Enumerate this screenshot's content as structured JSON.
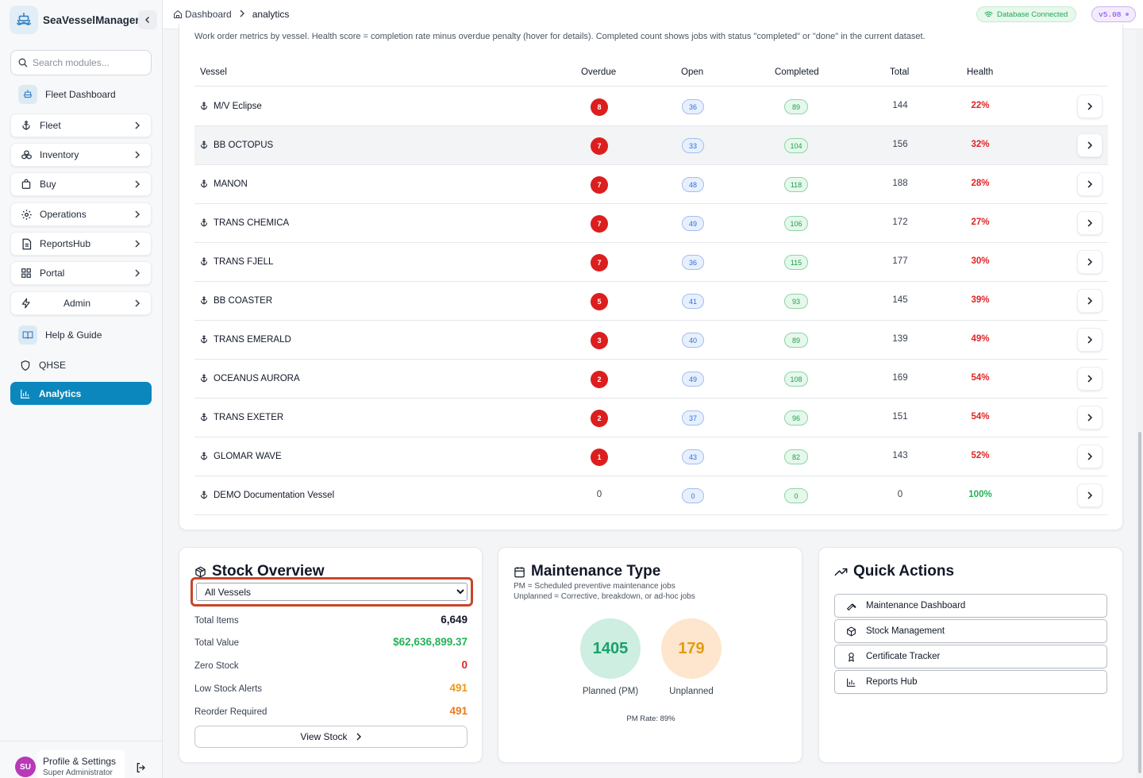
{
  "app": {
    "name": "SeaVesselManager"
  },
  "sidebar": {
    "search_placeholder": "Search modules...",
    "items": [
      {
        "label": "Fleet Dashboard",
        "icon": "ship-icon"
      },
      {
        "label": "Fleet",
        "icon": "anchor-icon"
      },
      {
        "label": "Inventory",
        "icon": "boxes-icon"
      },
      {
        "label": "Buy",
        "icon": "cart-icon"
      },
      {
        "label": "Operations",
        "icon": "gear-icon"
      },
      {
        "label": "ReportsHub",
        "icon": "report-icon"
      },
      {
        "label": "Portal",
        "icon": "grid-icon"
      },
      {
        "label": "Admin",
        "icon": "bolt-icon"
      },
      {
        "label": "Help & Guide",
        "icon": "book-icon"
      },
      {
        "label": "QHSE",
        "icon": "shield-icon"
      },
      {
        "label": "Analytics",
        "icon": "bar-chart-icon"
      }
    ],
    "profile": {
      "initials": "SU",
      "name": "Profile & Settings",
      "role": "Super Administrator"
    }
  },
  "topbar": {
    "breadcrumb_home": "Dashboard",
    "breadcrumb_current": "analytics",
    "db_status": "Database Connected",
    "version": "v5.08"
  },
  "work_orders": {
    "description": "Work order metrics by vessel. Health score = completion rate minus overdue penalty (hover for details). Completed count shows jobs with status \"completed\" or \"done\" in the current dataset.",
    "columns": {
      "vessel": "Vessel",
      "overdue": "Overdue",
      "open": "Open",
      "completed": "Completed",
      "total": "Total",
      "health": "Health"
    },
    "rows": [
      {
        "vessel": "M/V Eclipse",
        "overdue": "8",
        "open": "36",
        "completed": "89",
        "total": "144",
        "health": "22%"
      },
      {
        "vessel": "BB OCTOPUS",
        "overdue": "7",
        "open": "33",
        "completed": "104",
        "total": "156",
        "health": "32%"
      },
      {
        "vessel": "MANON",
        "overdue": "7",
        "open": "48",
        "completed": "118",
        "total": "188",
        "health": "28%"
      },
      {
        "vessel": "TRANS CHEMICA",
        "overdue": "7",
        "open": "49",
        "completed": "106",
        "total": "172",
        "health": "27%"
      },
      {
        "vessel": "TRANS FJELL",
        "overdue": "7",
        "open": "36",
        "completed": "115",
        "total": "177",
        "health": "30%"
      },
      {
        "vessel": "BB COASTER",
        "overdue": "5",
        "open": "41",
        "completed": "93",
        "total": "145",
        "health": "39%"
      },
      {
        "vessel": "TRANS EMERALD",
        "overdue": "3",
        "open": "40",
        "completed": "89",
        "total": "139",
        "health": "49%"
      },
      {
        "vessel": "OCEANUS AURORA",
        "overdue": "2",
        "open": "49",
        "completed": "108",
        "total": "169",
        "health": "54%"
      },
      {
        "vessel": "TRANS EXETER",
        "overdue": "2",
        "open": "37",
        "completed": "96",
        "total": "151",
        "health": "54%"
      },
      {
        "vessel": "GLOMAR WAVE",
        "overdue": "1",
        "open": "43",
        "completed": "82",
        "total": "143",
        "health": "52%"
      },
      {
        "vessel": "DEMO Documentation Vessel",
        "overdue": "0",
        "open": "0",
        "completed": "0",
        "total": "0",
        "health": "100%"
      }
    ]
  },
  "stock": {
    "title": "Stock Overview",
    "selected_vessel": "All Vessels",
    "stats": [
      {
        "label": "Total Items",
        "value": "6,649",
        "color": "#111827"
      },
      {
        "label": "Total Value",
        "value": "$62,636,899.37",
        "color": "#22b357"
      },
      {
        "label": "Zero Stock",
        "value": "0",
        "color": "#dc2626"
      },
      {
        "label": "Low Stock Alerts",
        "value": "491",
        "color": "#ea9a16"
      },
      {
        "label": "Reorder Required",
        "value": "491",
        "color": "#ea7a16"
      }
    ],
    "view_label": "View Stock"
  },
  "maintenance": {
    "title": "Maintenance Type",
    "note_pm": "PM = Scheduled preventive maintenance jobs",
    "note_unplanned": "Unplanned = Corrective, breakdown, or ad-hoc jobs",
    "planned_value": "1405",
    "planned_label": "Planned (PM)",
    "unplanned_value": "179",
    "unplanned_label": "Unplanned",
    "pm_rate": "PM Rate: 89%"
  },
  "quick_actions": {
    "title": "Quick Actions",
    "items": [
      {
        "label": "Maintenance Dashboard",
        "icon": "wrench-icon"
      },
      {
        "label": "Stock Management",
        "icon": "package-icon"
      },
      {
        "label": "Certificate Tracker",
        "icon": "award-icon"
      },
      {
        "label": "Reports Hub",
        "icon": "bar-chart-icon"
      }
    ]
  },
  "colors": {
    "accent": "#0b87bd",
    "overdue": "#dc1e1e",
    "health_bad": "#e02424",
    "health_good": "#22b357"
  }
}
